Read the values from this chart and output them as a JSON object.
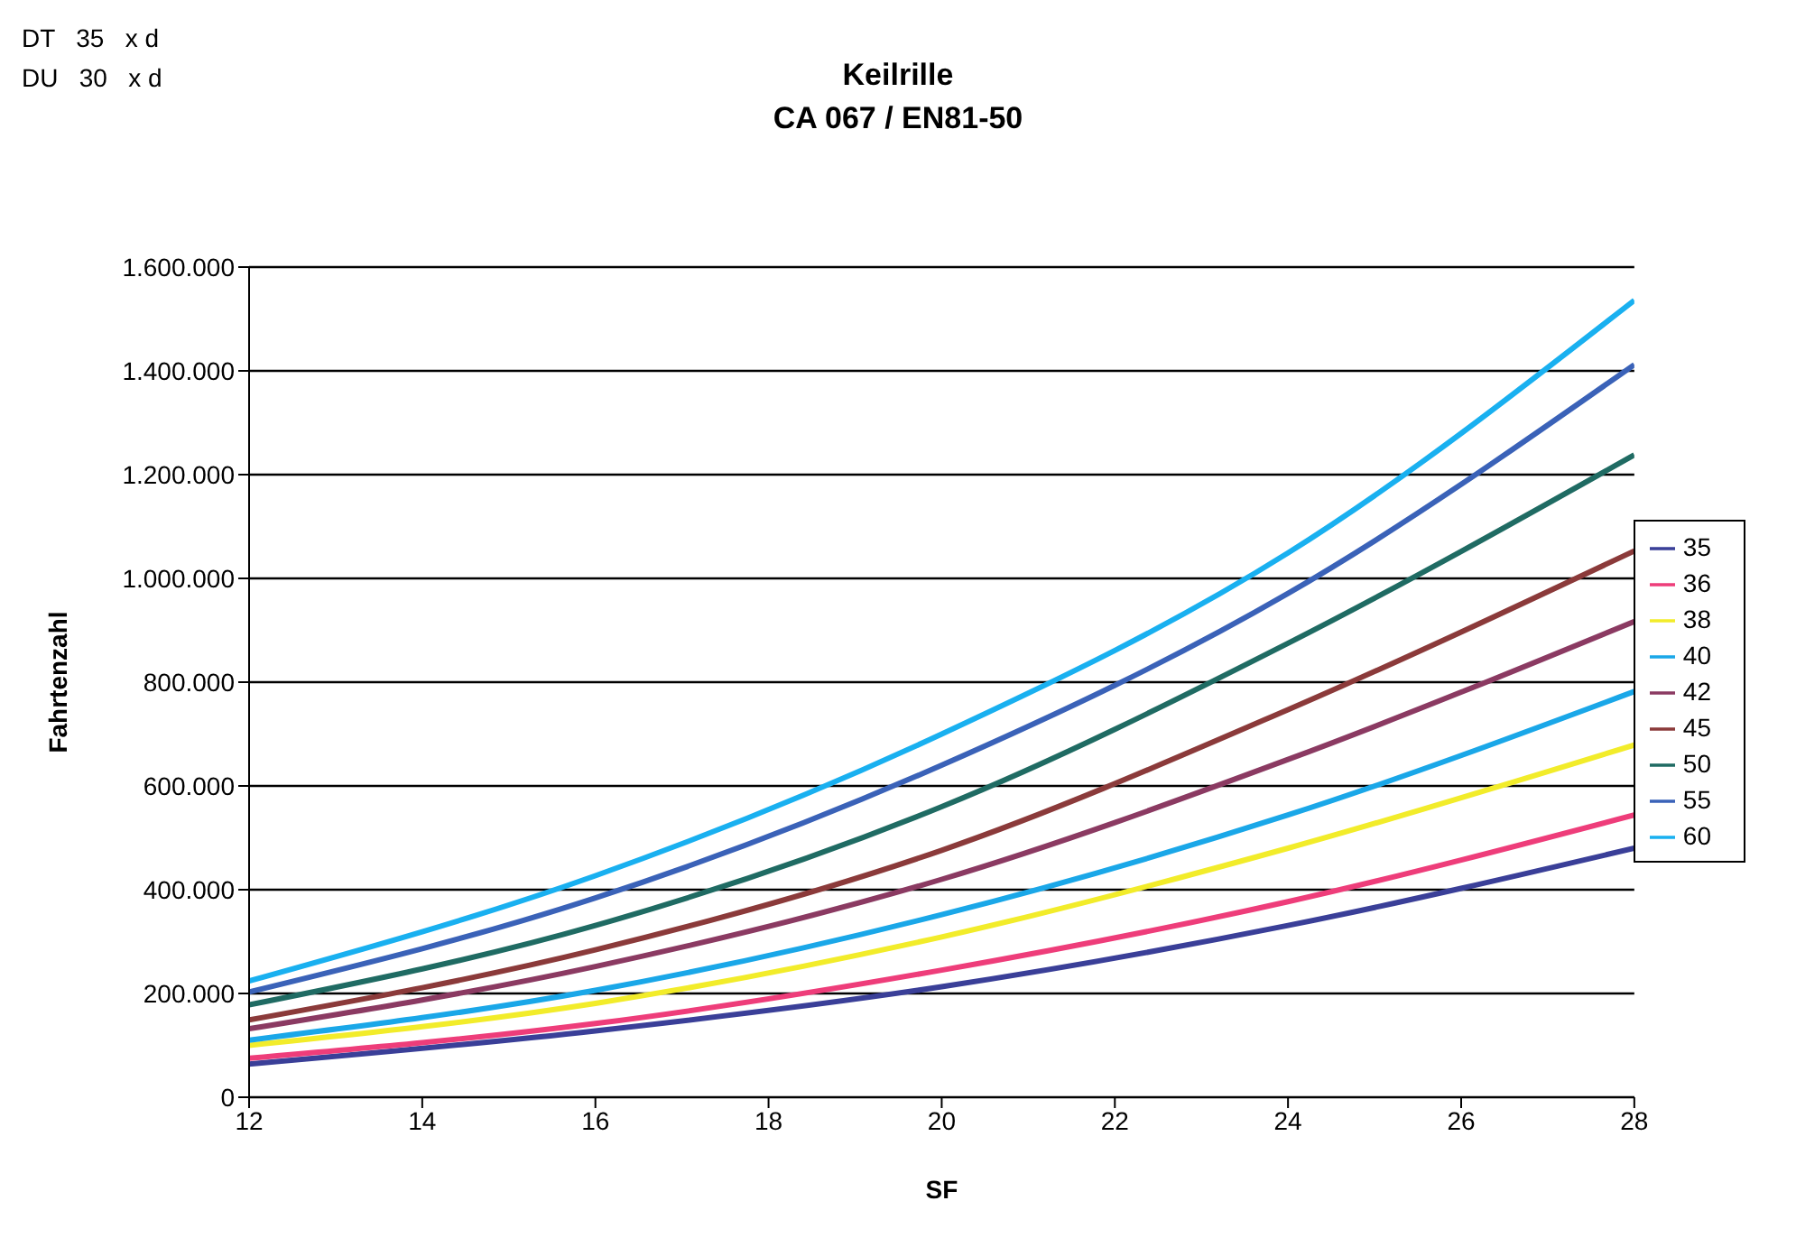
{
  "chart_data": {
    "type": "line",
    "title": "Keilrille",
    "subtitle": "CA 067 / EN81-50",
    "xlabel": "SF",
    "ylabel": "Fahrtenzahl",
    "annotations": [
      "DT   35   x d",
      "DU   30   x d"
    ],
    "x": [
      12,
      16,
      20,
      24,
      28
    ],
    "series": [
      {
        "name": "35",
        "color": "#3a3f98",
        "values": [
          64000,
          128000,
          213000,
          331000,
          480000
        ]
      },
      {
        "name": "36",
        "color": "#ee3d7a",
        "values": [
          75000,
          142000,
          245000,
          377000,
          544000
        ]
      },
      {
        "name": "38",
        "color": "#f2ec2a",
        "values": [
          100000,
          181000,
          309000,
          480000,
          679000
        ]
      },
      {
        "name": "40",
        "color": "#1aa7e8",
        "values": [
          110000,
          206000,
          352000,
          544000,
          782000
        ]
      },
      {
        "name": "42",
        "color": "#8b3a62",
        "values": [
          132000,
          252000,
          420000,
          651000,
          917000
        ]
      },
      {
        "name": "45",
        "color": "#8b3a3a",
        "values": [
          149000,
          284000,
          476000,
          747000,
          1053000
        ]
      },
      {
        "name": "50",
        "color": "#1f6b63",
        "values": [
          178000,
          331000,
          560000,
          875000,
          1238000
        ]
      },
      {
        "name": "55",
        "color": "#3a62b8",
        "values": [
          203000,
          384000,
          640000,
          971000,
          1412000
        ]
      },
      {
        "name": "60",
        "color": "#19b0f0",
        "values": [
          224000,
          427000,
          700000,
          1049000,
          1536000
        ]
      }
    ],
    "xlim": [
      12,
      28
    ],
    "xticks": [
      12,
      14,
      16,
      18,
      20,
      22,
      24,
      26,
      28
    ],
    "ylim": [
      0,
      1600000
    ],
    "yticks": [
      0,
      {
        "value": 200000,
        "label": "200.000"
      },
      {
        "value": 400000,
        "label": "400.000"
      },
      {
        "value": 600000,
        "label": "600.000"
      },
      {
        "value": 800000,
        "label": "800.000"
      },
      {
        "value": 1000000,
        "label": "1.000.000"
      },
      {
        "value": 1200000,
        "label": "1.200.000"
      },
      {
        "value": 1400000,
        "label": "1.400.000"
      },
      {
        "value": 1600000,
        "label": "1.600.000"
      }
    ],
    "grid": "y",
    "legend": "right",
    "marker": "none",
    "line_style": "solid"
  }
}
